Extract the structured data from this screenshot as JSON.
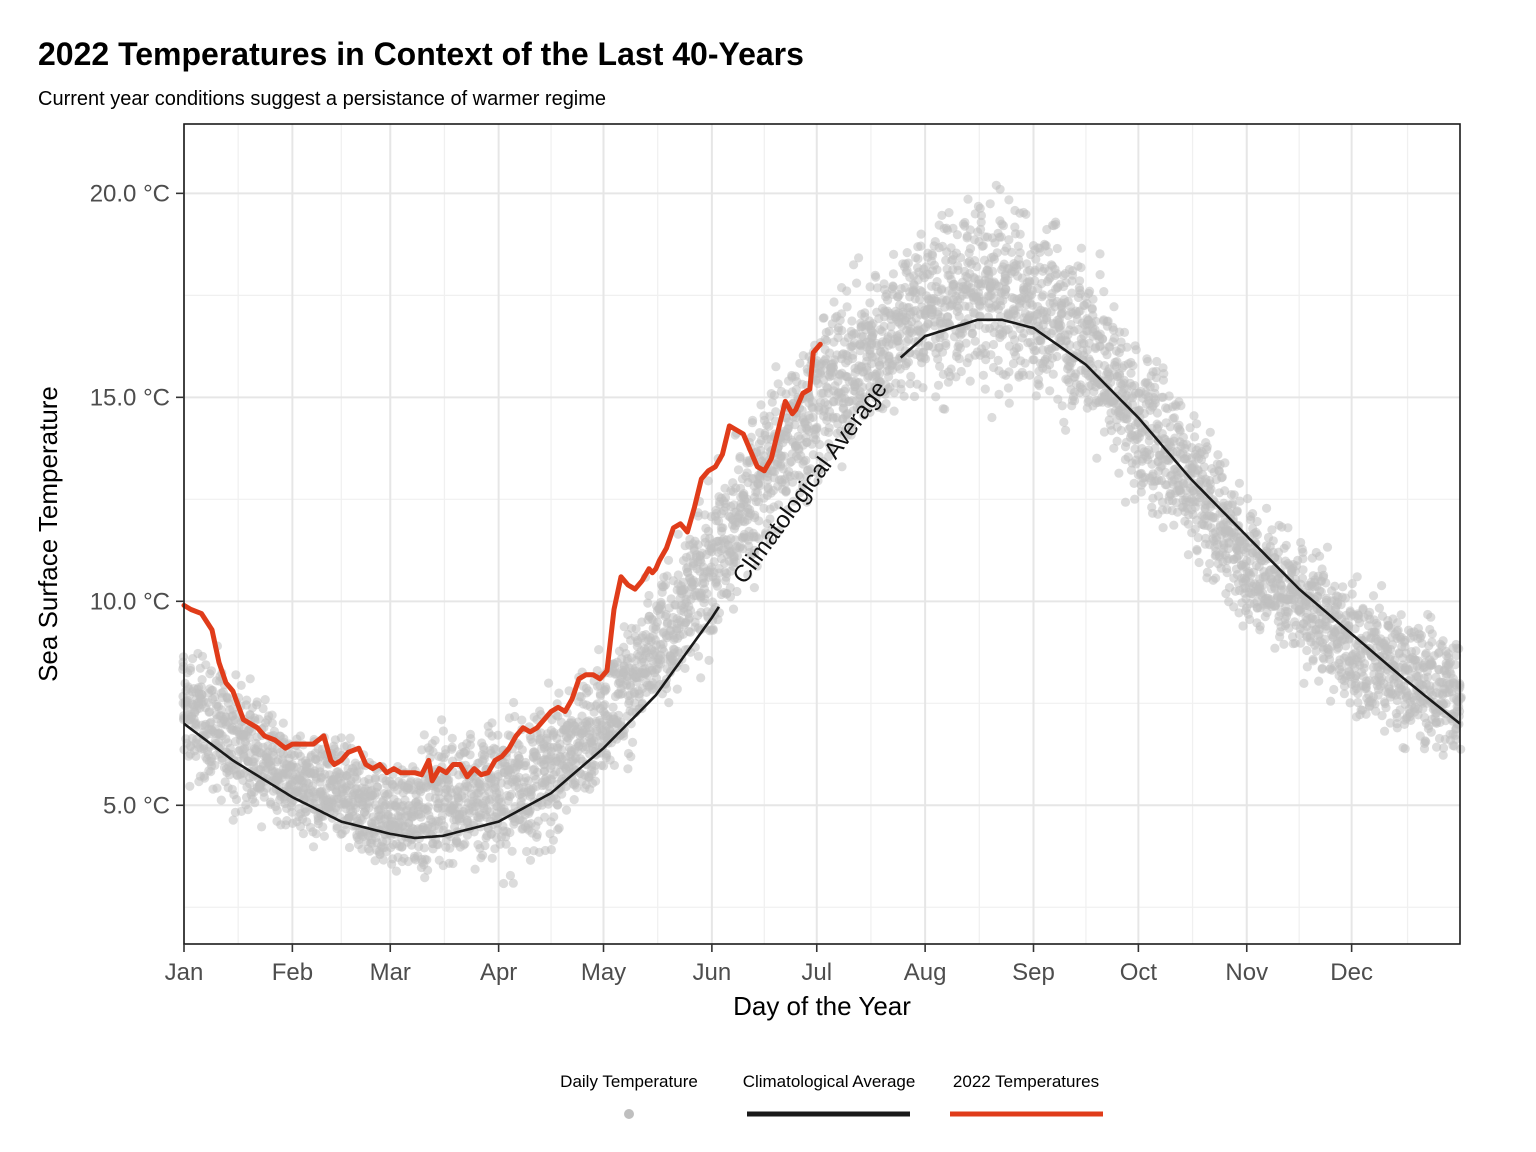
{
  "chart_data": {
    "type": "line",
    "title": "2022 Temperatures in Context of the Last 40-Years",
    "subtitle": "Current year conditions suggest a persistance of warmer regime",
    "xlabel": "Day of the Year",
    "ylabel": "Sea Surface Temperature",
    "x_unit": "day of year",
    "xlim": [
      1,
      366
    ],
    "ylim": [
      1.6,
      21.7
    ],
    "x_ticks": [
      {
        "day": 1,
        "label": "Jan"
      },
      {
        "day": 32,
        "label": "Feb"
      },
      {
        "day": 60,
        "label": "Mar"
      },
      {
        "day": 91,
        "label": "Apr"
      },
      {
        "day": 121,
        "label": "May"
      },
      {
        "day": 152,
        "label": "Jun"
      },
      {
        "day": 182,
        "label": "Jul"
      },
      {
        "day": 213,
        "label": "Aug"
      },
      {
        "day": 244,
        "label": "Sep"
      },
      {
        "day": 274,
        "label": "Oct"
      },
      {
        "day": 305,
        "label": "Nov"
      },
      {
        "day": 335,
        "label": "Dec"
      }
    ],
    "y_ticks": [
      {
        "value": 5,
        "label": "5.0 °C"
      },
      {
        "value": 10,
        "label": "10.0 °C"
      },
      {
        "value": 15,
        "label": "15.0 °C"
      },
      {
        "value": 20,
        "label": "20.0 °C"
      }
    ],
    "grid": true,
    "legend_position": "bottom",
    "annotation": "Climatological Average",
    "series": [
      {
        "name": "Daily Temperature",
        "kind": "points",
        "color": "#bfbfbf",
        "description_values": "envelope",
        "envelope": {
          "x": [
            1,
            15,
            32,
            46,
            60,
            75,
            91,
            106,
            121,
            136,
            152,
            167,
            182,
            197,
            213,
            228,
            244,
            259,
            274,
            289,
            305,
            320,
            335,
            350,
            366
          ],
          "low": [
            5.0,
            4.4,
            3.9,
            3.3,
            2.9,
            2.8,
            2.6,
            3.4,
            5.1,
            6.4,
            8.2,
            10.4,
            12.0,
            13.4,
            14.3,
            14.4,
            14.2,
            13.4,
            11.7,
            10.5,
            9.0,
            7.9,
            6.7,
            6.0,
            5.5
          ],
          "high": [
            9.8,
            8.8,
            7.3,
            7.1,
            6.4,
            7.5,
            8.0,
            8.2,
            9.2,
            11.1,
            13.7,
            15.8,
            18.0,
            18.8,
            19.9,
            20.8,
            20.4,
            19.5,
            17.1,
            15.7,
            13.0,
            12.0,
            11.1,
            10.3,
            9.9
          ]
        }
      },
      {
        "name": "Climatological Average",
        "kind": "line",
        "color": "#1a1a1a",
        "x": [
          1,
          15,
          32,
          46,
          60,
          67,
          75,
          91,
          106,
          121,
          136,
          152,
          167,
          182,
          197,
          213,
          228,
          235,
          244,
          259,
          274,
          289,
          305,
          320,
          335,
          350,
          366
        ],
        "y": [
          7.0,
          6.1,
          5.2,
          4.6,
          4.3,
          4.2,
          4.25,
          4.6,
          5.3,
          6.4,
          7.7,
          9.6,
          11.6,
          13.6,
          15.3,
          16.5,
          16.9,
          16.9,
          16.7,
          15.8,
          14.5,
          13.0,
          11.6,
          10.3,
          9.2,
          8.1,
          7.0
        ]
      },
      {
        "name": "2022 Temperatures",
        "kind": "line",
        "color": "#e03c1a",
        "x": [
          1,
          3,
          6,
          9,
          11,
          13,
          15,
          18,
          20,
          22,
          24,
          27,
          30,
          32,
          34,
          36,
          38,
          41,
          43,
          44,
          46,
          48,
          51,
          53,
          55,
          57,
          59,
          61,
          63,
          65,
          67,
          69,
          71,
          72,
          74,
          76,
          78,
          80,
          82,
          84,
          86,
          88,
          90,
          92,
          94,
          96,
          98,
          100,
          102,
          104,
          106,
          108,
          110,
          112,
          114,
          116,
          118,
          120,
          122,
          124,
          126,
          128,
          130,
          132,
          134,
          135,
          136,
          137,
          139,
          141,
          143,
          145,
          147,
          149,
          151,
          153,
          155,
          157,
          159,
          161,
          163,
          165,
          167,
          169,
          171,
          173,
          175,
          176,
          178,
          180,
          181,
          183
        ],
        "y": [
          9.9,
          9.8,
          9.7,
          9.3,
          8.5,
          8.0,
          7.8,
          7.1,
          7.0,
          6.9,
          6.7,
          6.6,
          6.4,
          6.5,
          6.5,
          6.5,
          6.5,
          6.7,
          6.1,
          6.0,
          6.1,
          6.3,
          6.4,
          6.0,
          5.9,
          6.0,
          5.8,
          5.9,
          5.8,
          5.8,
          5.8,
          5.75,
          6.1,
          5.6,
          5.9,
          5.8,
          6.0,
          6.0,
          5.7,
          5.9,
          5.75,
          5.8,
          6.1,
          6.2,
          6.4,
          6.7,
          6.9,
          6.8,
          6.9,
          7.1,
          7.3,
          7.4,
          7.3,
          7.6,
          8.1,
          8.2,
          8.2,
          8.1,
          8.3,
          9.8,
          10.6,
          10.4,
          10.3,
          10.5,
          10.8,
          10.7,
          10.8,
          11.0,
          11.3,
          11.8,
          11.9,
          11.7,
          12.3,
          13.0,
          13.2,
          13.3,
          13.6,
          14.3,
          14.2,
          14.1,
          13.7,
          13.3,
          13.2,
          13.5,
          14.2,
          14.9,
          14.6,
          14.7,
          15.1,
          15.2,
          16.1,
          16.3
        ]
      }
    ]
  }
}
